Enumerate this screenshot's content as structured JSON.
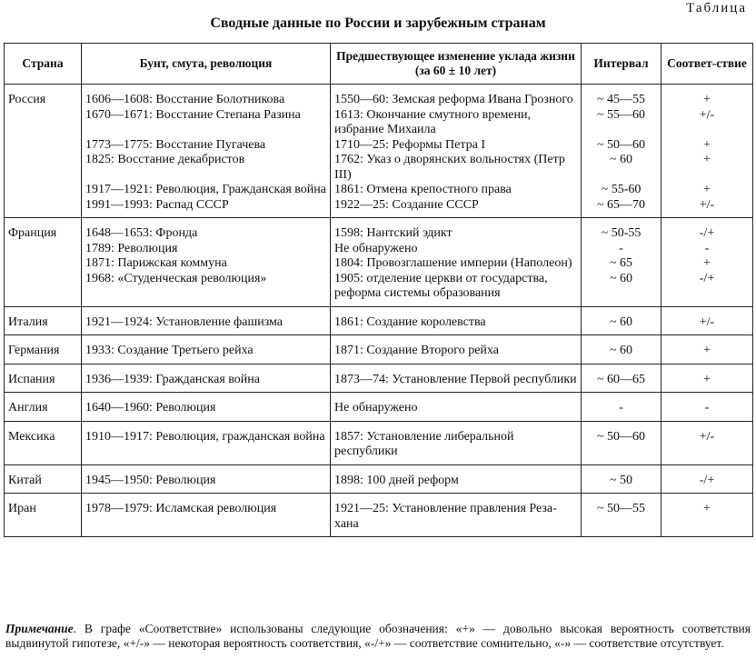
{
  "header": {
    "table_label": "Таблица",
    "title": "Сводные данные по России и зарубежным странам"
  },
  "columns": {
    "country": "Страна",
    "revolt": "Бунт, смута, революция",
    "change": "Предшествующее изменение уклада жизни (за 60 ± 10 лет)",
    "interval": "Интервал",
    "match": "Соответ-ствие"
  },
  "rows": [
    {
      "country": "Россия",
      "entries": [
        {
          "revolt": "1606—1608: Восстание Болотникова",
          "change": "1550—60: Земская реформа Ивана Грозного",
          "interval": "~ 45—55",
          "match": "+"
        },
        {
          "revolt": "1670—1671: Восстание Степана Разина",
          "change": "1613: Окончание смутного времени, избрание Михаила",
          "interval": "~ 55—60",
          "match": "+/-"
        },
        {
          "revolt": "1773—1775: Восстание Пугачева",
          "change": "1710—25: Реформы Петра I",
          "interval": "~ 50—60",
          "match": "+"
        },
        {
          "revolt": "1825: Восстание декабристов",
          "change": "1762: Указ о дворянских вольностях (Петр III)",
          "interval": "~ 60",
          "match": "+"
        },
        {
          "revolt": "1917—1921: Революция, Гражданская война",
          "change": "1861: Отмена крепостного права",
          "interval": "~ 55-60",
          "match": "+"
        },
        {
          "revolt": "1991—1993: Распад СССР",
          "change": "1922—25: Создание СССР",
          "interval": "~ 65—70",
          "match": "+/-"
        }
      ]
    },
    {
      "country": "Франция",
      "entries": [
        {
          "revolt": "1648—1653: Фронда",
          "change": "1598: Нантский эдикт",
          "interval": "~ 50-55",
          "match": "-/+"
        },
        {
          "revolt": "1789: Революция",
          "change": "Не обнаружено",
          "interval": "-",
          "match": "-"
        },
        {
          "revolt": "1871: Парижская коммуна",
          "change": "1804: Провозглашение империи (Наполеон)",
          "interval": "~ 65",
          "match": "+"
        },
        {
          "revolt": "1968: «Студенческая революция»",
          "change": "1905: отделение церкви от государства, реформа системы образования",
          "interval": "~ 60",
          "match": "-/+"
        }
      ]
    },
    {
      "country": "Италия",
      "entries": [
        {
          "revolt": "1921—1924: Установление фашизма",
          "change": "1861: Создание королевства",
          "interval": "~ 60",
          "match": "+/-"
        }
      ]
    },
    {
      "country": "Германия",
      "entries": [
        {
          "revolt": "1933: Создание Третьего рейха",
          "change": "1871: Создание Второго рейха",
          "interval": "~ 60",
          "match": "+"
        }
      ]
    },
    {
      "country": "Испания",
      "entries": [
        {
          "revolt": "1936—1939: Гражданская война",
          "change": "1873—74: Установление Первой республики",
          "interval": "~ 60—65",
          "match": "+"
        }
      ]
    },
    {
      "country": "Англия",
      "entries": [
        {
          "revolt": "1640—1960: Революция",
          "change": "Не обнаружено",
          "interval": "-",
          "match": "-"
        }
      ]
    },
    {
      "country": "Мексика",
      "entries": [
        {
          "revolt": "1910—1917: Революция, гражданская война",
          "change": "1857: Установление либеральной республики",
          "interval": "~ 50—60",
          "match": "+/-"
        }
      ]
    },
    {
      "country": "Китай",
      "entries": [
        {
          "revolt": "1945—1950: Революция",
          "change": "1898: 100 дней реформ",
          "interval": "~ 50",
          "match": "-/+"
        }
      ]
    },
    {
      "country": "Иран",
      "entries": [
        {
          "revolt": "1978—1979: Исламская революция",
          "change": "1921—25: Установление правления Реза-хана",
          "interval": "~ 50—55",
          "match": "+"
        }
      ]
    }
  ],
  "note": {
    "label": "Примечание",
    "text": ". В графе «Соответствие» использованы следующие обозначения: «+» — довольно высокая вероятность соответствия выдвинутой гипотезе, «+/-» — некоторая вероятность соответствия, «-/+» — соответствие сомнительно, «-» — соответствие отсутствует."
  }
}
